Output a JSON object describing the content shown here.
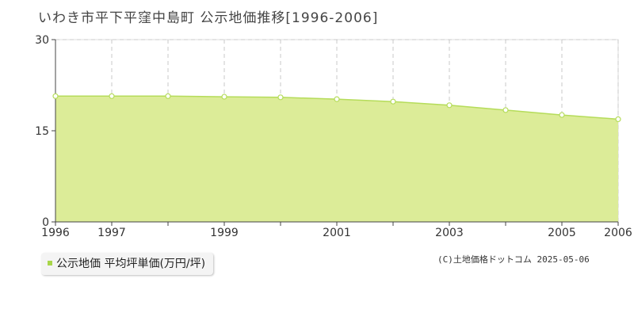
{
  "chart_data": {
    "type": "area",
    "title": "いわき市平下平窪中島町 公示地価推移[1996-2006]",
    "x": [
      1996,
      1997,
      1998,
      1999,
      2000,
      2001,
      2002,
      2003,
      2004,
      2005,
      2006
    ],
    "x_tick_labels": [
      "1996",
      "1997",
      "1999",
      "2001",
      "2003",
      "2005",
      "2006"
    ],
    "y_ticks": [
      "0",
      "15",
      "30"
    ],
    "ylim": [
      0,
      30
    ],
    "grid": true,
    "legend_position": "bottom-left",
    "series": [
      {
        "name": "公示地価 平均坪単価(万円/坪)",
        "values": [
          20.7,
          20.7,
          20.7,
          20.6,
          20.5,
          20.2,
          19.8,
          19.2,
          18.4,
          17.6,
          16.9
        ]
      }
    ],
    "colors": {
      "fill": "#dcec98",
      "line": "#b5dc5a",
      "marker_fill": "#ffffff",
      "grid": "#c8c8c8",
      "legend_swatch": "#a8d64a"
    }
  },
  "legend": {
    "label": "公示地価 平均坪単価(万円/坪)"
  },
  "copyright": "(C)土地価格ドットコム 2025-05-06"
}
